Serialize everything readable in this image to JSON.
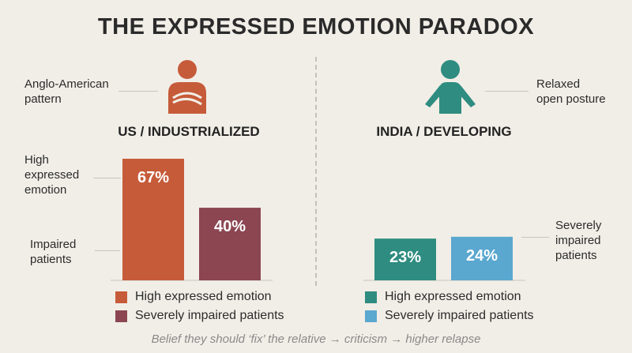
{
  "title": "THE EXPRESSED EMOTION PARADOX",
  "footer": "Belief they should ‘fix’ the relative → criticism → higher relapse",
  "left_panel": {
    "region": "US / INDUSTRIALIZED",
    "pattern_note": [
      "Anglo-American",
      "pattern"
    ],
    "high_ee_label": [
      "High",
      "expressed",
      "emotion"
    ],
    "impaired_label": [
      "Impaired",
      "patients"
    ],
    "figure_icon": "crossed-arms-person-icon"
  },
  "right_panel": {
    "region": "INDIA / DEVELOPING",
    "posture_note": [
      "Relaxed",
      "open posture"
    ],
    "impaired_label": [
      "Severely",
      "impaired",
      "patients"
    ],
    "figure_icon": "open-posture-person-icon"
  },
  "legend": [
    {
      "label": "High expressed emotion",
      "color": "#c65b3a"
    },
    {
      "label": "Severely impaired patients",
      "color": "#8b4652"
    }
  ],
  "legend_right": [
    {
      "label": "High expressed emotion",
      "color": "#2e8c80"
    },
    {
      "label": "Severely impaired patients",
      "color": "#5aa7cf"
    }
  ],
  "chart_data": {
    "type": "bar",
    "categories": [
      "US / INDUSTRIALIZED",
      "INDIA / DEVELOPING"
    ],
    "series": [
      {
        "name": "High expressed emotion",
        "values": [
          67,
          23
        ],
        "labels": [
          "67%",
          "23%"
        ],
        "colors": [
          "#c65b3a",
          "#2e8c80"
        ]
      },
      {
        "name": "Severely impaired patients",
        "values": [
          40,
          24
        ],
        "labels": [
          "40%",
          "24%"
        ],
        "colors": [
          "#8b4652",
          "#5aa7cf"
        ]
      }
    ],
    "ylim": [
      0,
      67
    ],
    "grid": false,
    "legend": "bottom"
  }
}
